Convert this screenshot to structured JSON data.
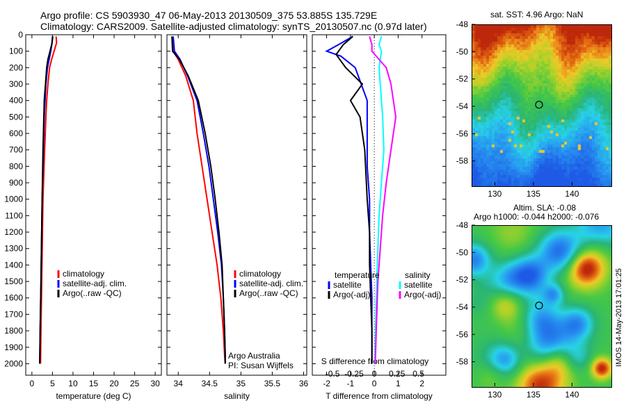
{
  "header": {
    "line1": "Argo profile: CS 5903930_47 06-May-2013 20130509_375 53.885S 135.729E",
    "line2": "Climatology: CARS2009. Satellite-adjusted climatology: synTS_20130507.nc (0.97d later)"
  },
  "chart_data": [
    {
      "type": "line",
      "id": "temperature",
      "xlabel": "temperature (deg C)",
      "ylabel": "",
      "xlim": [
        -1.5,
        31.5
      ],
      "ylim": [
        2070,
        0
      ],
      "xticks": [
        0,
        5,
        10,
        15,
        20,
        25,
        30
      ],
      "yticks": [
        0,
        100,
        200,
        300,
        400,
        500,
        600,
        700,
        800,
        900,
        1000,
        1100,
        1200,
        1300,
        1400,
        1500,
        1600,
        1700,
        1800,
        1900,
        2000
      ],
      "legend": {
        "placement": "center-right",
        "entries": [
          "climatology",
          "satellite-adj. clim.",
          "Argo(..raw -QC)"
        ]
      },
      "series": [
        {
          "name": "climatology",
          "color": "#ff0000",
          "x": [
            5.9,
            6.0,
            5.4,
            4.8,
            4.3,
            3.9,
            3.6,
            3.4,
            3.1,
            2.7,
            2.4,
            2.2,
            2.1
          ],
          "y": [
            10,
            50,
            100,
            150,
            200,
            300,
            400,
            500,
            700,
            1000,
            1500,
            1800,
            2000
          ]
        },
        {
          "name": "satellite-adj. clim.",
          "color": "#0000ff",
          "x": [
            5.0,
            4.9,
            4.6,
            4.2,
            3.8,
            3.4,
            3.2,
            3.0,
            2.8,
            2.5,
            2.2,
            2.0,
            1.9
          ],
          "y": [
            10,
            50,
            100,
            150,
            200,
            300,
            400,
            500,
            700,
            1000,
            1500,
            1800,
            2000
          ]
        },
        {
          "name": "Argo(..raw -QC)",
          "color": "#000000",
          "x": [
            5.1,
            4.9,
            4.4,
            3.9,
            3.6,
            3.3,
            3.0,
            2.9,
            2.7,
            2.5,
            2.2,
            2.0,
            1.9
          ],
          "y": [
            10,
            50,
            100,
            150,
            200,
            300,
            400,
            500,
            700,
            1000,
            1500,
            1800,
            2000
          ]
        }
      ]
    },
    {
      "type": "line",
      "id": "salinity",
      "xlabel": "salinity",
      "ylabel": "",
      "xlim": [
        33.82,
        36.05
      ],
      "ylim": [
        2070,
        0
      ],
      "xticks": [
        34,
        34.5,
        35,
        35.5,
        36
      ],
      "legend": {
        "placement": "center-right",
        "entries": [
          "climatology",
          "satellite-adj. clim.",
          "Argo(..raw -QC)"
        ]
      },
      "annotations": [
        "Argo Australia",
        "PI: Susan Wijffels"
      ],
      "series": [
        {
          "name": "climatology",
          "color": "#ff0000",
          "x": [
            33.9,
            33.92,
            34.0,
            34.12,
            34.24,
            34.3,
            34.38,
            34.46,
            34.54,
            34.62,
            34.68,
            34.72,
            34.74,
            34.75
          ],
          "y": [
            10,
            100,
            150,
            250,
            400,
            600,
            800,
            1000,
            1200,
            1400,
            1600,
            1800,
            1950,
            2000
          ]
        },
        {
          "name": "satellite-adj. clim.",
          "color": "#0000ff",
          "x": [
            33.92,
            33.94,
            34.03,
            34.15,
            34.3,
            34.4,
            34.49,
            34.56,
            34.63,
            34.69,
            34.72,
            34.74,
            34.75,
            34.75
          ],
          "y": [
            10,
            100,
            150,
            250,
            400,
            600,
            800,
            1000,
            1200,
            1400,
            1600,
            1800,
            1950,
            2000
          ]
        },
        {
          "name": "Argo(..raw -QC)",
          "color": "#000000",
          "x": [
            33.9,
            33.91,
            34.02,
            34.16,
            34.32,
            34.43,
            34.52,
            34.59,
            34.65,
            34.7,
            34.72,
            34.74,
            34.75,
            34.75
          ],
          "y": [
            10,
            100,
            150,
            250,
            400,
            600,
            800,
            1000,
            1200,
            1400,
            1600,
            1800,
            1950,
            2000
          ]
        }
      ]
    },
    {
      "type": "line",
      "id": "differences",
      "xlabel": "T difference from climatology",
      "xlabel_top": "S difference from climatology",
      "ylabel": "",
      "xlim": [
        -2.6,
        3.0
      ],
      "ylim": [
        2070,
        0
      ],
      "xticks": [
        -2,
        -1,
        0,
        1,
        2
      ],
      "xticks_s_labels": [
        {
          "label": "-0.5",
          "at": -1.75
        },
        {
          "label": "-0.25",
          "at": -0.85
        },
        {
          "label": "0",
          "at": 0
        },
        {
          "label": "0.25",
          "at": 0.95
        },
        {
          "label": "0.5",
          "at": 1.85
        }
      ],
      "legend": {
        "placement": "center",
        "temperature_title": "temperature",
        "salinity_title": "salinity",
        "temperature_entries": [
          "satellite",
          "Argo(-adj)"
        ],
        "salinity_entries": [
          "satellite",
          "Argo(-adj)"
        ]
      },
      "series": [
        {
          "name": "satellite",
          "group": "temperature",
          "color": "#0000ff",
          "x": [
            -0.9,
            -1.5,
            -2.0,
            -1.4,
            -0.8,
            -0.3,
            -0.3,
            -0.3,
            -0.2,
            -0.2,
            -0.15,
            -0.1,
            -0.1,
            -0.1
          ],
          "y": [
            10,
            60,
            100,
            130,
            200,
            400,
            600,
            800,
            1000,
            1200,
            1400,
            1600,
            1800,
            2000
          ]
        },
        {
          "name": "Argo(-adj)",
          "group": "temperature",
          "color": "#000000",
          "x": [
            -0.9,
            -1.3,
            -1.6,
            -1.2,
            -0.5,
            -1.0,
            -0.6,
            -0.4,
            -0.3,
            -0.2,
            -0.2,
            -0.15,
            -0.1,
            -0.1
          ],
          "y": [
            10,
            60,
            120,
            200,
            300,
            400,
            500,
            700,
            1000,
            1200,
            1400,
            1600,
            1800,
            2000
          ]
        },
        {
          "name": "satellite",
          "group": "salinity",
          "color": "#00ffff",
          "x": [
            0.3,
            0.2,
            0.3,
            0.25,
            0.2,
            0.25,
            0.35,
            0.4,
            0.3,
            0.2,
            0.15,
            0.1,
            0.05,
            0.02
          ],
          "y": [
            10,
            60,
            100,
            150,
            200,
            300,
            500,
            700,
            900,
            1100,
            1300,
            1500,
            1800,
            2000
          ]
        },
        {
          "name": "Argo(-adj)",
          "group": "salinity",
          "color": "#ff00ff",
          "x": [
            -0.2,
            -0.1,
            -0.1,
            0.2,
            0.5,
            0.7,
            0.9,
            0.7,
            0.5,
            0.35,
            0.25,
            0.15,
            0.08,
            0.04
          ],
          "y": [
            10,
            60,
            100,
            150,
            200,
            300,
            500,
            700,
            900,
            1100,
            1300,
            1500,
            1800,
            2000
          ]
        }
      ]
    },
    {
      "type": "heatmap",
      "id": "sst-map",
      "title": "sat. SST: 4.96 Argo: NaN",
      "xlim": [
        127,
        145
      ],
      "ylim": [
        -59.8,
        -48
      ],
      "xticks": [
        130,
        135,
        140
      ],
      "yticks": [
        -48,
        -50,
        -52,
        -54,
        -56,
        -58
      ],
      "marker": {
        "x": 135.729,
        "y": -53.885
      }
    },
    {
      "type": "heatmap",
      "id": "sla-map",
      "title": "Altim. SLA: -0.08",
      "subtitle": "Argo h1000: -0.044 h2000: -0.076",
      "xlim": [
        127,
        145
      ],
      "ylim": [
        -59.8,
        -48
      ],
      "xticks": [
        130,
        135,
        140
      ],
      "yticks": [
        -48,
        -50,
        -52,
        -54,
        -56,
        -58
      ],
      "marker": {
        "x": 135.729,
        "y": -53.885
      }
    }
  ],
  "footer_stamp": "IMOS 14-May-2013 17:01:25"
}
